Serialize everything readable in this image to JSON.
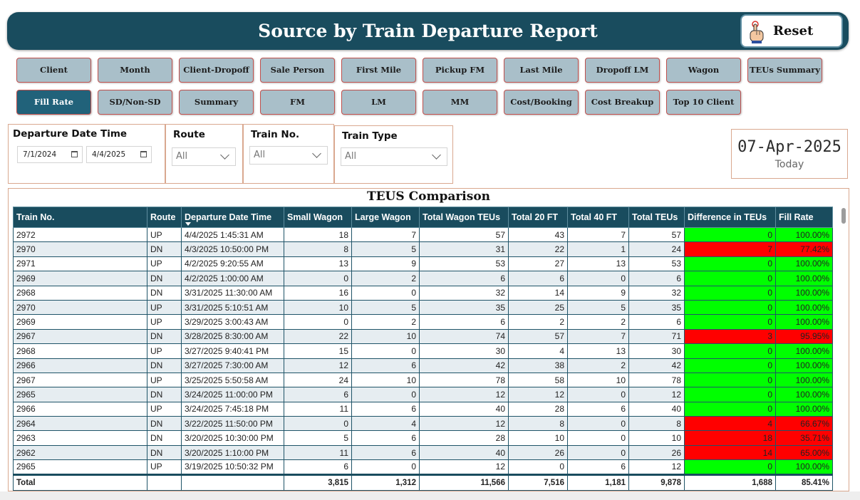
{
  "header": {
    "title": "Source by Train Departure Report",
    "reset_label": "Reset"
  },
  "nav": {
    "row1": [
      "Client",
      "Month",
      "Client-Dropoff",
      "Sale Person",
      "First Mile",
      "Pickup FM",
      "Last Mile",
      "Dropoff LM",
      "Wagon",
      "TEUs Summary"
    ],
    "row2": [
      "Fill Rate",
      "SD/Non-SD",
      "Summary",
      "FM",
      "LM",
      "MM",
      "Cost/Booking",
      "Cost Breakup",
      "Top 10 Client"
    ],
    "active": "Fill Rate"
  },
  "filters": {
    "departure": {
      "title": "Departure Date Time",
      "start": "7/1/2024",
      "end": "4/4/2025"
    },
    "route": {
      "title": "Route",
      "value": "All"
    },
    "train_no": {
      "title": "Train No.",
      "value": "All"
    },
    "train_type": {
      "title": "Train Type",
      "value": "All"
    }
  },
  "today": {
    "date": "07-Apr-2025",
    "label": "Today"
  },
  "table": {
    "title": "TEUS Comparison",
    "columns": [
      "Train No.",
      "Route",
      "Departure Date Time",
      "Small Wagon",
      "Large Wagon",
      "Total Wagon TEUs",
      "Total 20 FT",
      "Total 40 FT",
      "Total TEUs",
      "Difference in TEUs",
      "Fill Rate"
    ],
    "rows": [
      [
        "2972",
        "UP",
        "4/4/2025 1:45:31 AM",
        "18",
        "7",
        "57",
        "43",
        "7",
        "57",
        "0",
        "100.00%"
      ],
      [
        "2970",
        "DN",
        "4/3/2025 10:50:00 PM",
        "8",
        "5",
        "31",
        "22",
        "1",
        "24",
        "7",
        "77.42%"
      ],
      [
        "2971",
        "UP",
        "4/2/2025 9:20:55 AM",
        "13",
        "9",
        "53",
        "27",
        "13",
        "53",
        "0",
        "100.00%"
      ],
      [
        "2969",
        "DN",
        "4/2/2025 1:00:00 AM",
        "0",
        "2",
        "6",
        "6",
        "0",
        "6",
        "0",
        "100.00%"
      ],
      [
        "2968",
        "DN",
        "3/31/2025 11:30:00 AM",
        "16",
        "0",
        "32",
        "14",
        "9",
        "32",
        "0",
        "100.00%"
      ],
      [
        "2970",
        "UP",
        "3/31/2025 5:10:51 AM",
        "10",
        "5",
        "35",
        "25",
        "5",
        "35",
        "0",
        "100.00%"
      ],
      [
        "2969",
        "UP",
        "3/29/2025 3:00:43 AM",
        "0",
        "2",
        "6",
        "2",
        "2",
        "6",
        "0",
        "100.00%"
      ],
      [
        "2967",
        "DN",
        "3/28/2025 8:30:00 AM",
        "22",
        "10",
        "74",
        "57",
        "7",
        "71",
        "3",
        "95.95%"
      ],
      [
        "2968",
        "UP",
        "3/27/2025 9:40:41 PM",
        "15",
        "0",
        "30",
        "4",
        "13",
        "30",
        "0",
        "100.00%"
      ],
      [
        "2966",
        "DN",
        "3/27/2025 7:30:00 AM",
        "12",
        "6",
        "42",
        "38",
        "2",
        "42",
        "0",
        "100.00%"
      ],
      [
        "2967",
        "UP",
        "3/25/2025 5:50:58 AM",
        "24",
        "10",
        "78",
        "58",
        "10",
        "78",
        "0",
        "100.00%"
      ],
      [
        "2965",
        "DN",
        "3/24/2025 11:00:00 PM",
        "6",
        "0",
        "12",
        "12",
        "0",
        "12",
        "0",
        "100.00%"
      ],
      [
        "2966",
        "UP",
        "3/24/2025 7:45:18 PM",
        "11",
        "6",
        "40",
        "28",
        "6",
        "40",
        "0",
        "100.00%"
      ],
      [
        "2964",
        "DN",
        "3/22/2025 11:50:00 PM",
        "0",
        "4",
        "12",
        "8",
        "0",
        "8",
        "4",
        "66.67%"
      ],
      [
        "2963",
        "DN",
        "3/20/2025 10:30:00 PM",
        "5",
        "6",
        "28",
        "10",
        "0",
        "10",
        "18",
        "35.71%"
      ],
      [
        "2962",
        "DN",
        "3/20/2025 1:10:00 PM",
        "11",
        "6",
        "40",
        "26",
        "0",
        "26",
        "14",
        "65.00%"
      ],
      [
        "2965",
        "UP",
        "3/19/2025 10:50:32 PM",
        "6",
        "0",
        "12",
        "0",
        "6",
        "12",
        "0",
        "100.00%"
      ]
    ],
    "total": [
      "Total",
      "",
      "",
      "3,815",
      "1,312",
      "11,566",
      "7,516",
      "1,181",
      "9,878",
      "1,688",
      "85.41%"
    ],
    "status_colors": {
      "good": "#00ff00",
      "bad": "#ff0000"
    }
  },
  "colors": {
    "header_bg": "#194c5e",
    "nav_bg": "#a9bfc9",
    "nav_active": "#21627a",
    "nav_border": "#c0504d"
  },
  "icons": {
    "reset": "pointing-hand-icon",
    "calendar": "calendar-icon",
    "dropdown": "chevron-down-icon"
  }
}
